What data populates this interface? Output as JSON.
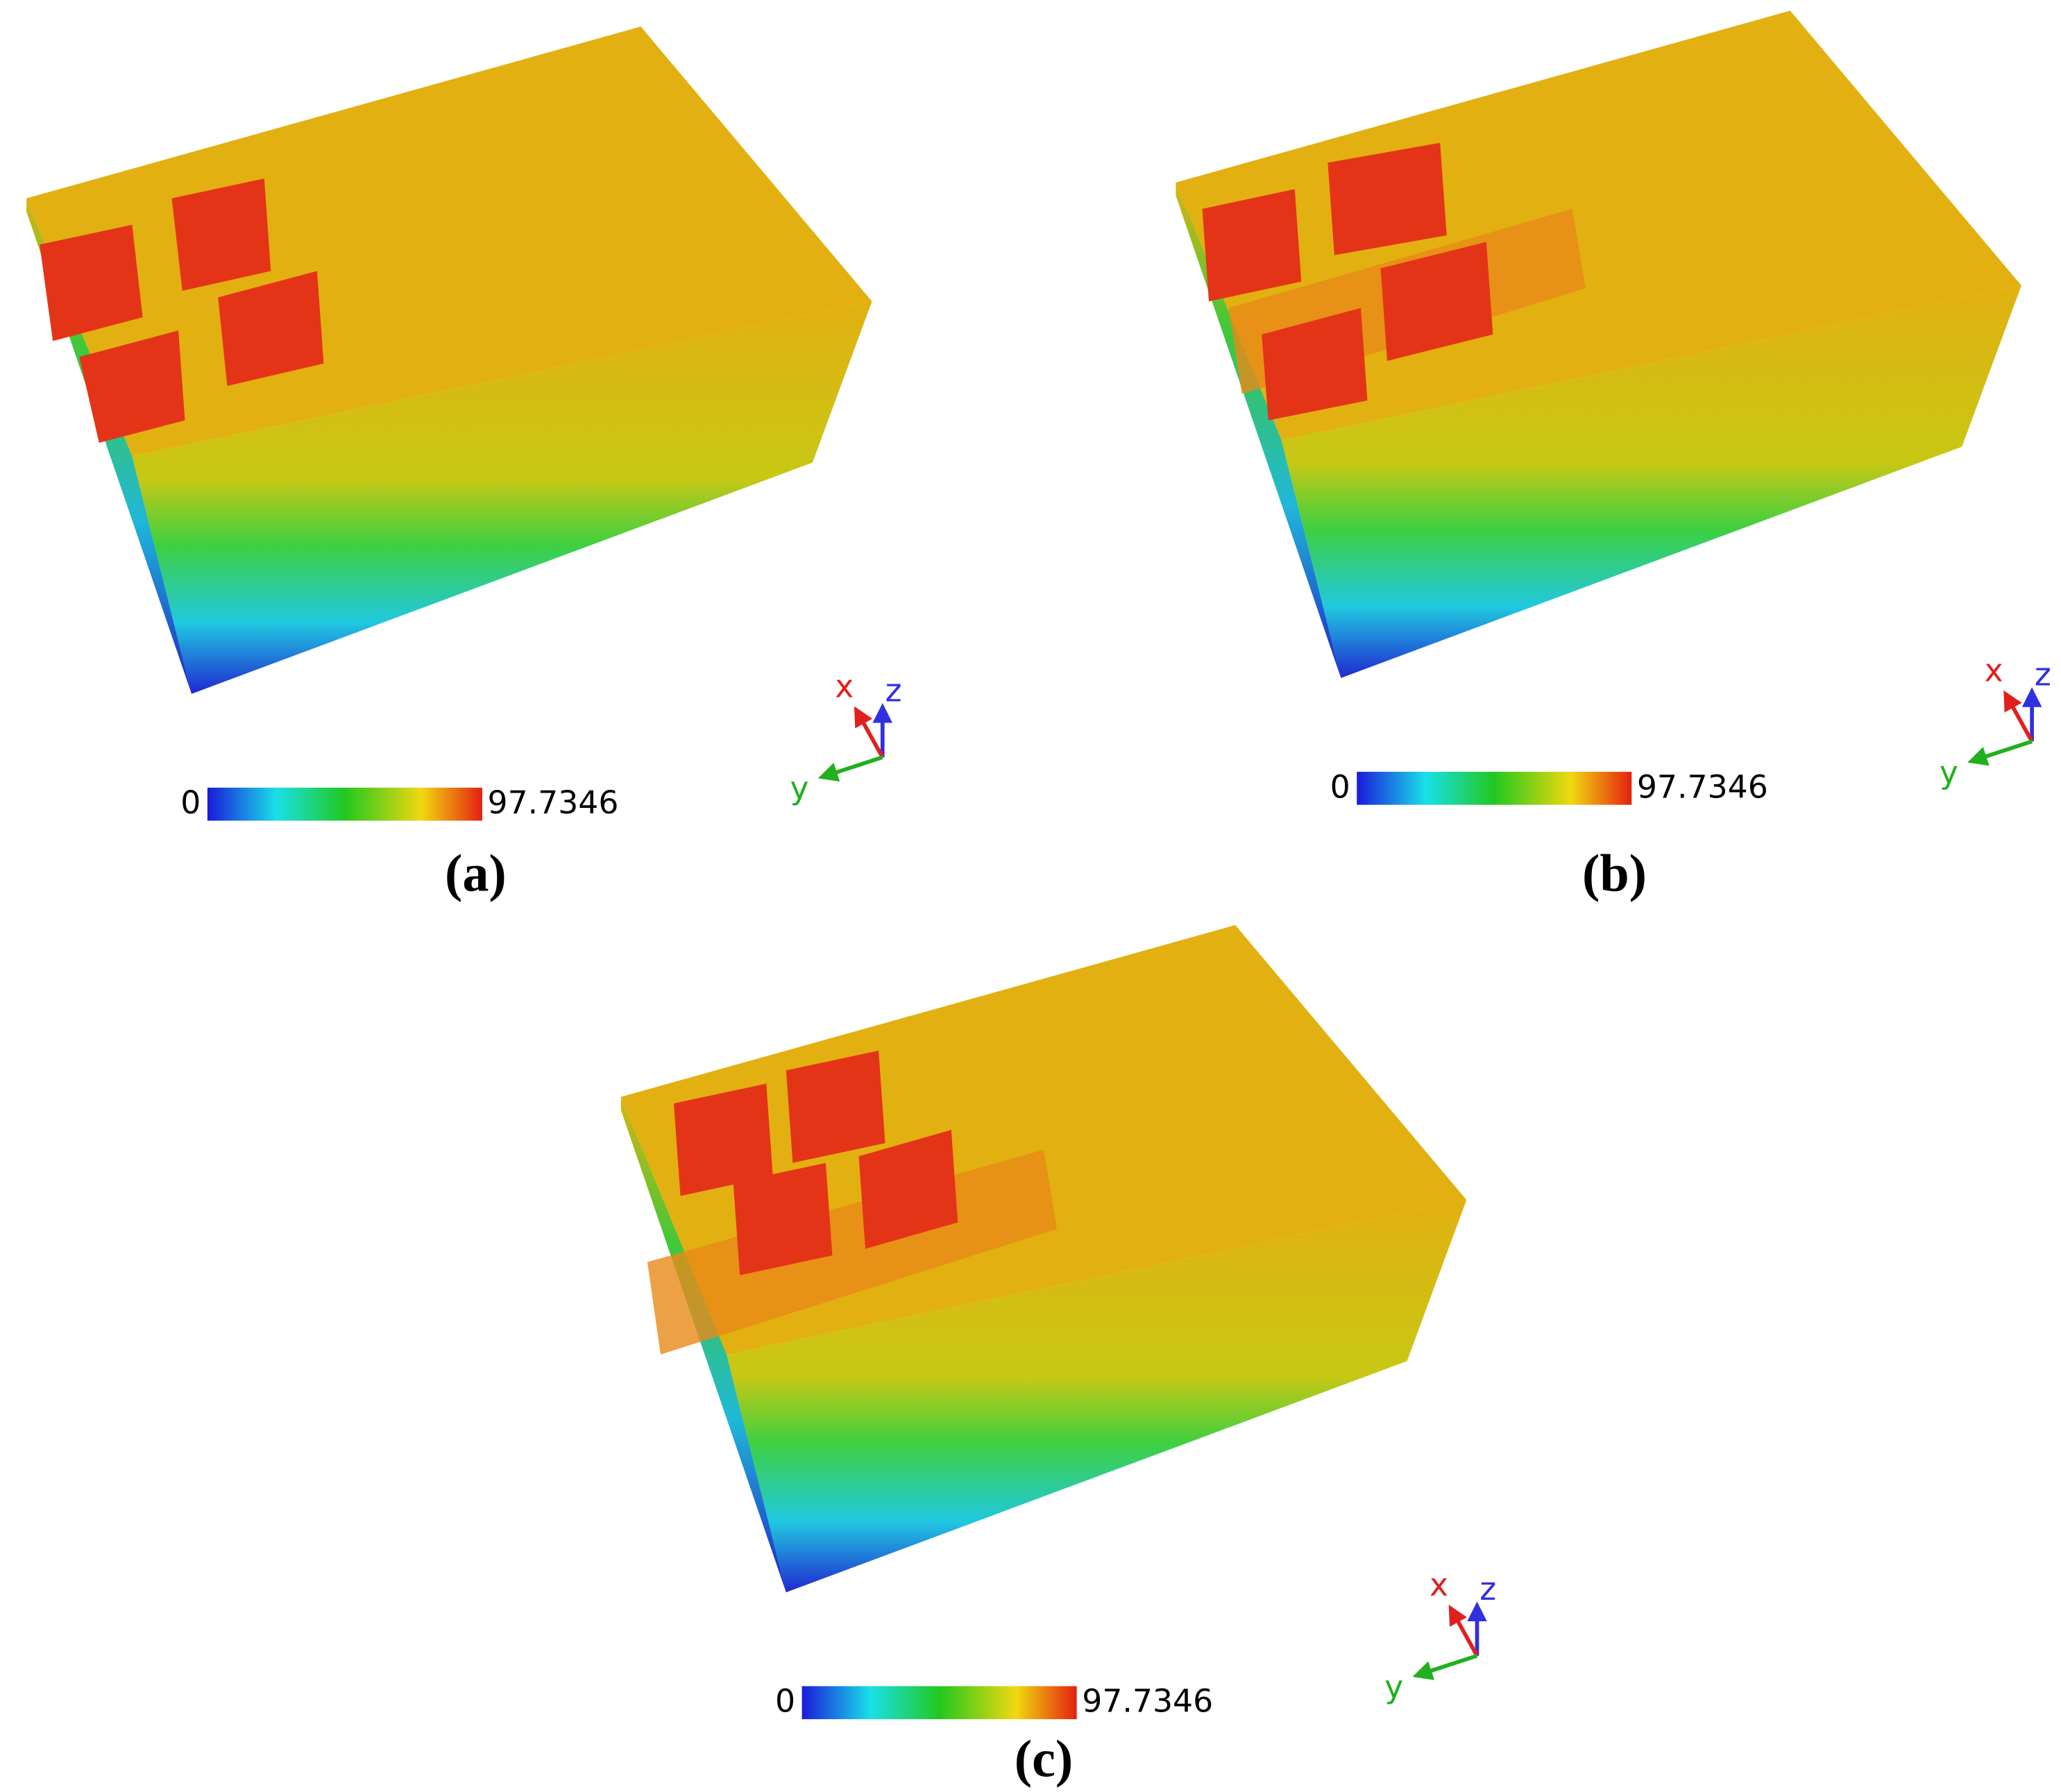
{
  "panels": [
    {
      "label": "(a)",
      "colorbar": {
        "min": 0,
        "max": 97.7346
      },
      "axes": {
        "x": "x",
        "y": "y",
        "z": "z"
      }
    },
    {
      "label": "(b)",
      "colorbar": {
        "min": 0,
        "max": 97.7346
      },
      "axes": {
        "x": "x",
        "y": "y",
        "z": "z"
      }
    },
    {
      "label": "(c)",
      "colorbar": {
        "min": 0,
        "max": 97.7346
      },
      "axes": {
        "x": "x",
        "y": "y",
        "z": "z"
      }
    }
  ]
}
